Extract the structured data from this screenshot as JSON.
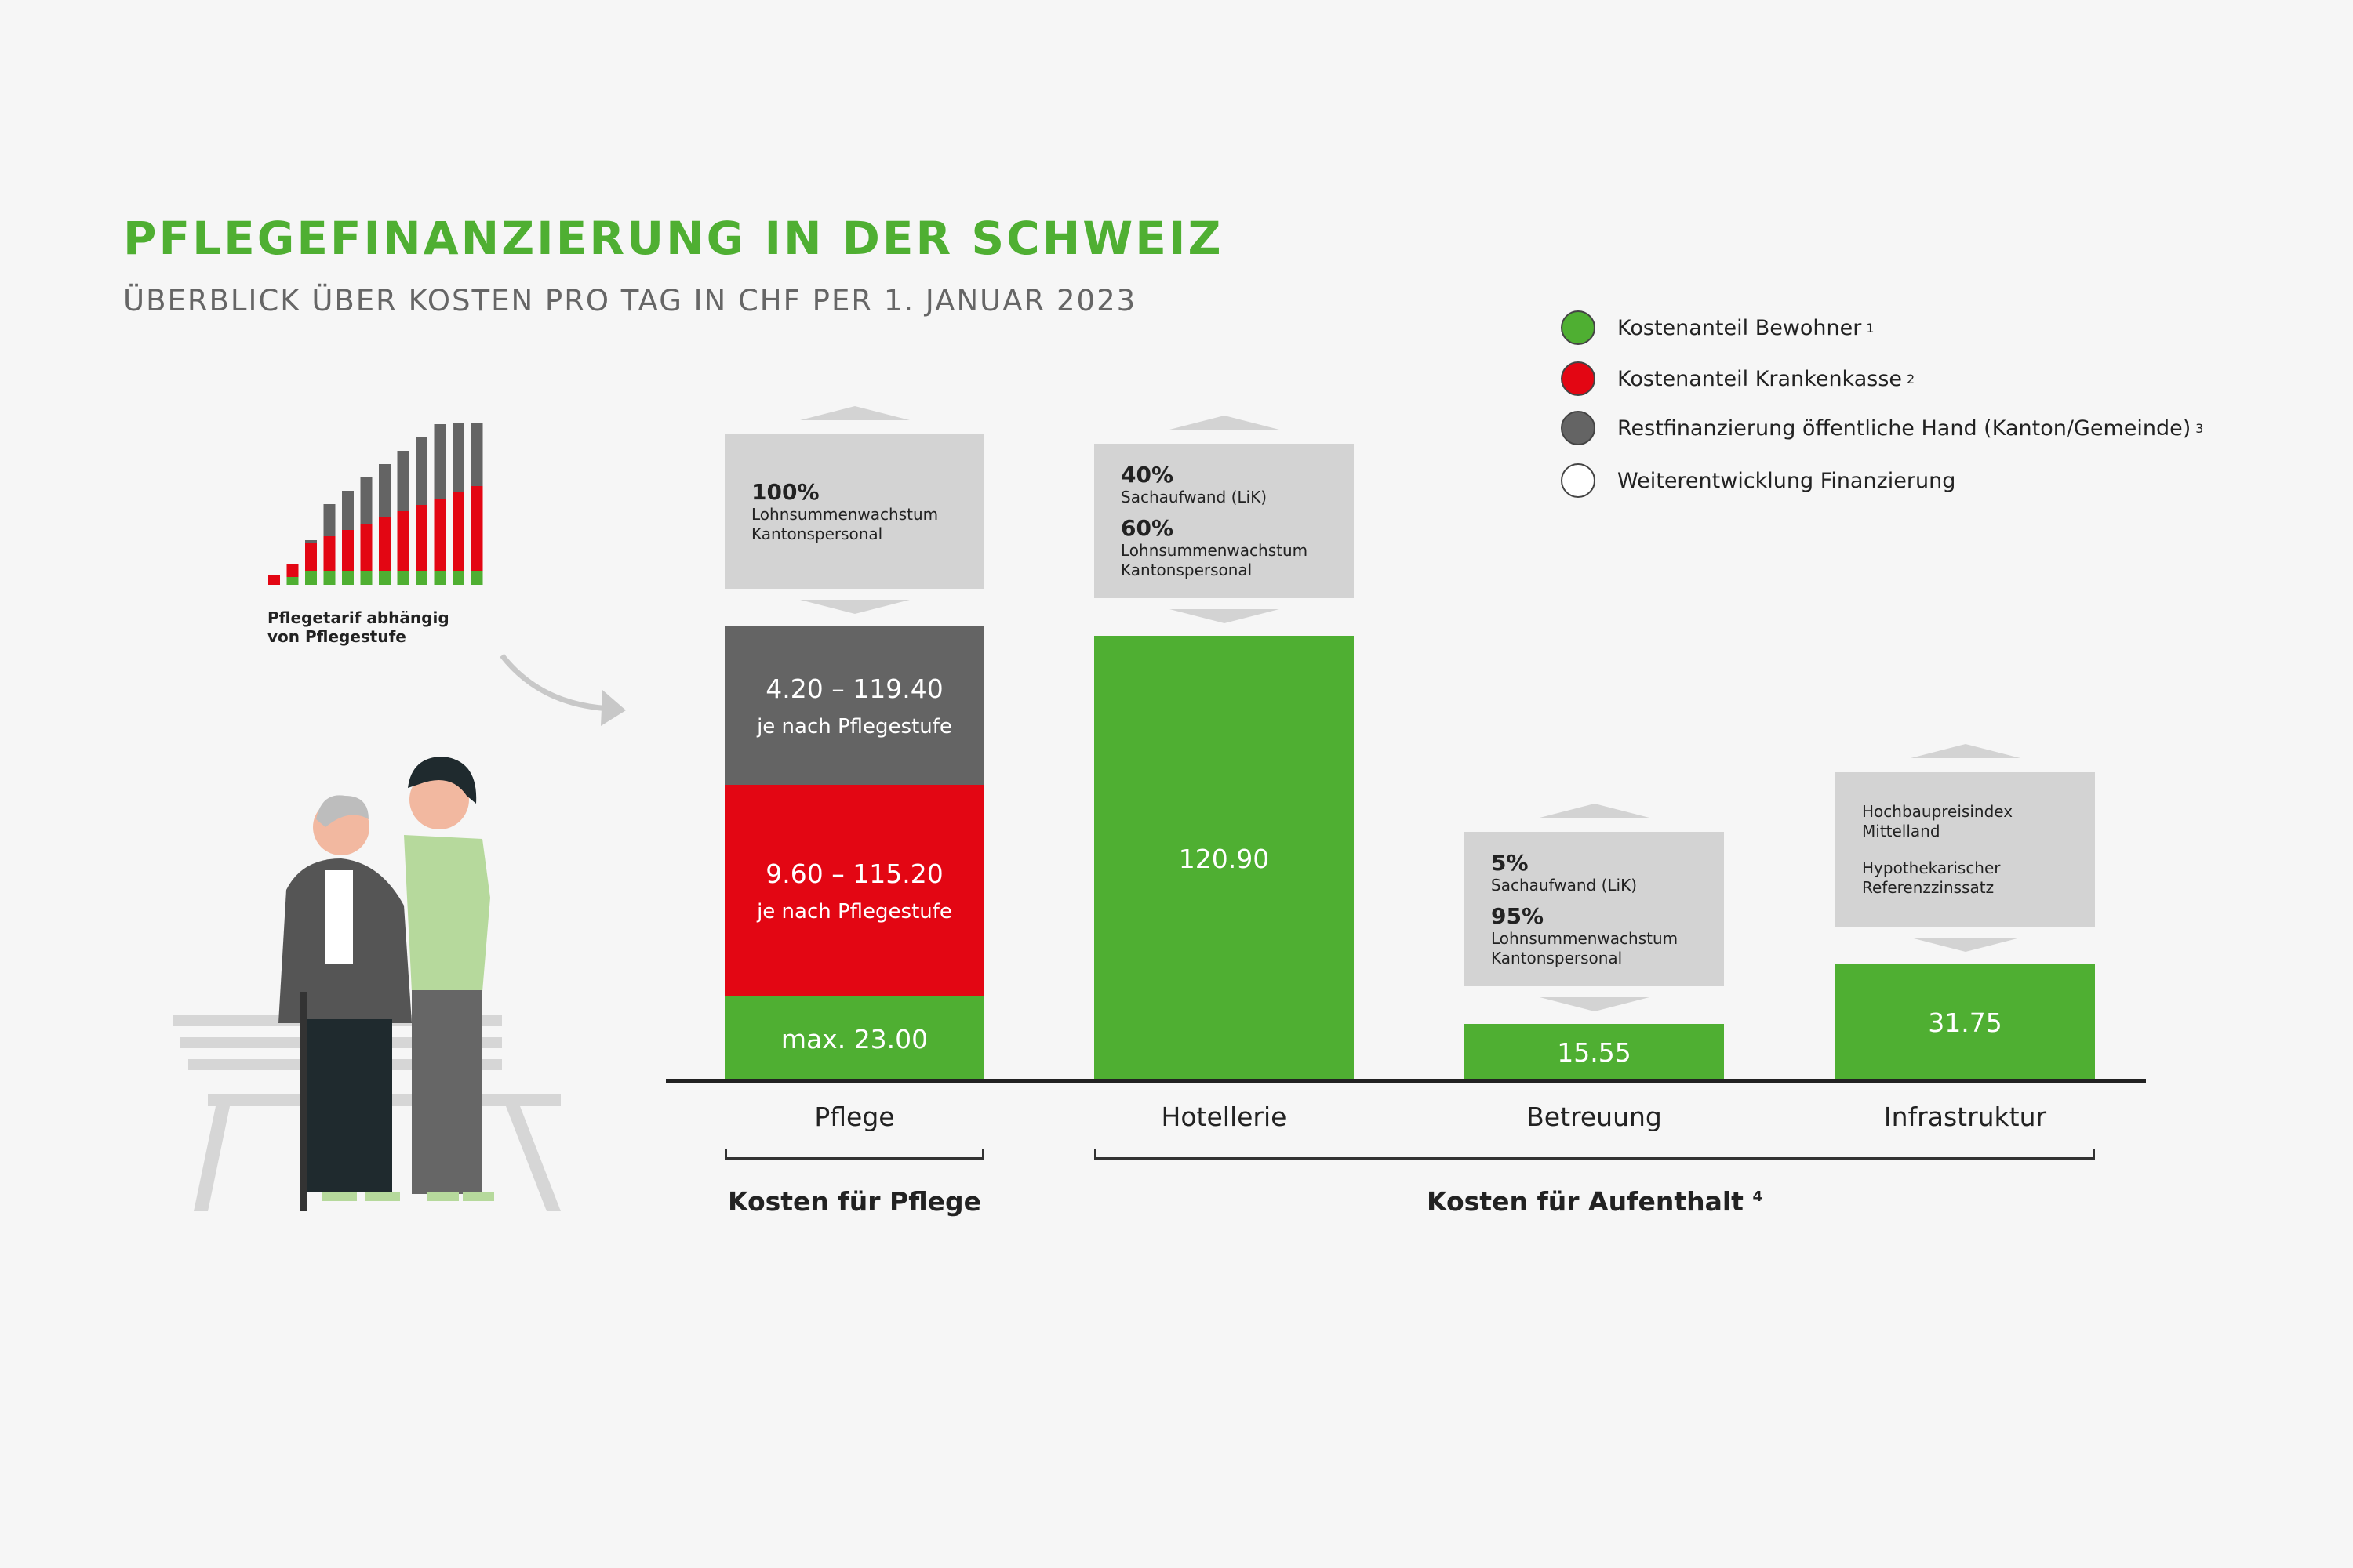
{
  "header": {
    "title": "PFLEGEFINANZIERUNG IN DER SCHWEIZ",
    "subtitle": "ÜBERBLICK ÜBER KOSTEN PRO TAG IN CHF PER 1. JANUAR 2023"
  },
  "legend": [
    {
      "label": "Kostenanteil Bewohner",
      "note": "1",
      "color": "#4faf32"
    },
    {
      "label": "Kostenanteil Krankenkasse",
      "note": "2",
      "color": "#e30613"
    },
    {
      "label": "Restfinanzierung öffentliche Hand (Kanton/Gemeinde)",
      "note": "3",
      "color": "#646464"
    },
    {
      "label": "Weiterentwicklung Finanzierung",
      "note": "",
      "color": "#ffffff"
    }
  ],
  "illustration": {
    "caption_line1": "Pflegetarif abhängig",
    "caption_line2": "von Pflegestufe"
  },
  "chart_data": {
    "type": "bar",
    "stacked": true,
    "categories": [
      "Pflege",
      "Hotellerie",
      "Betreuung",
      "Infrastruktur"
    ],
    "bars": [
      {
        "category": "Pflege",
        "segments": [
          {
            "label": "max. 23.00",
            "value": 23.0,
            "color": "#4faf32"
          },
          {
            "label": "9.60 – 115.20",
            "sublabel": "je nach Pflegestufe",
            "min": 9.6,
            "max": 115.2,
            "color": "#e30613"
          },
          {
            "label": "4.20 – 119.40",
            "sublabel": "je nach Pflegestufe",
            "min": 4.2,
            "max": 119.4,
            "color": "#646464"
          }
        ],
        "development": [
          {
            "percent": "100%",
            "text": [
              "Lohnsummenwachstum",
              "Kantonspersonal"
            ]
          }
        ]
      },
      {
        "category": "Hotellerie",
        "segments": [
          {
            "label": "120.90",
            "value": 120.9,
            "color": "#4faf32"
          }
        ],
        "development": [
          {
            "percent": "40%",
            "text": [
              "Sachaufwand (LiK)"
            ]
          },
          {
            "percent": "60%",
            "text": [
              "Lohnsummenwachstum",
              "Kantonspersonal"
            ]
          }
        ]
      },
      {
        "category": "Betreuung",
        "segments": [
          {
            "label": "15.55",
            "value": 15.55,
            "color": "#4faf32"
          }
        ],
        "development": [
          {
            "percent": "5%",
            "text": [
              "Sachaufwand (LiK)"
            ]
          },
          {
            "percent": "95%",
            "text": [
              "Lohnsummenwachstum",
              "Kantonspersonal"
            ]
          }
        ]
      },
      {
        "category": "Infrastruktur",
        "segments": [
          {
            "label": "31.75",
            "value": 31.75,
            "color": "#4faf32"
          }
        ],
        "development": [
          {
            "percent": "",
            "text": [
              "Hochbaupreisindex",
              "Mittelland"
            ]
          },
          {
            "percent": "",
            "text": [
              "Hypothekarischer",
              "Referenzzinssatz"
            ]
          }
        ]
      }
    ],
    "groups": [
      {
        "label": "Kosten für Pflege",
        "note": "",
        "categories": [
          "Pflege"
        ]
      },
      {
        "label": "Kosten für Aufenthalt",
        "note": "4",
        "categories": [
          "Hotellerie",
          "Betreuung",
          "Infrastruktur"
        ]
      }
    ]
  }
}
